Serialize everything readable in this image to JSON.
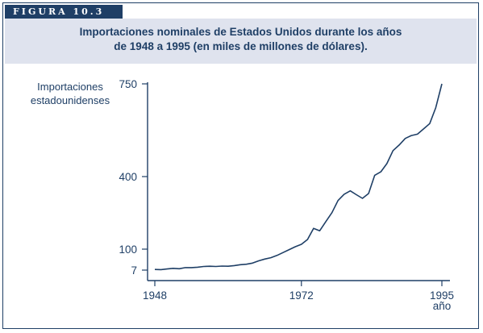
{
  "figure_label": "FIGURA 10.3",
  "chart_data": {
    "type": "line",
    "title_line1": "Importaciones nominales de Estados Unidos durante los años",
    "title_line2": "de 1948 a 1995 (en miles de millones de dólares).",
    "ylabel_line1": "Importaciones",
    "ylabel_line2": "estadounidenses",
    "xlabel": "año",
    "xticks": [
      1948,
      1972,
      1995
    ],
    "yticks": [
      7,
      100,
      400,
      750
    ],
    "xlim": [
      1948,
      1995
    ],
    "grid": false,
    "legend": "none",
    "series": [
      {
        "x": [
          1948,
          1949,
          1950,
          1951,
          1952,
          1953,
          1954,
          1955,
          1956,
          1957,
          1958,
          1959,
          1960,
          1961,
          1962,
          1963,
          1964,
          1965,
          1966,
          1967,
          1968,
          1969,
          1970,
          1971,
          1972,
          1973,
          1974,
          1975,
          1976,
          1977,
          1978,
          1979,
          1980,
          1981,
          1982,
          1983,
          1984,
          1985,
          1986,
          1987,
          1988,
          1989,
          1990,
          1991,
          1992,
          1993,
          1994,
          1995
        ],
        "y": [
          10,
          9,
          12,
          15,
          13,
          18,
          18,
          20,
          23,
          24,
          23,
          25,
          24,
          27,
          31,
          33,
          38,
          48,
          56,
          62,
          72,
          85,
          98,
          110,
          120,
          140,
          186,
          176,
          214,
          251,
          301,
          327,
          341,
          325,
          310,
          330,
          405,
          418,
          449,
          498,
          519,
          544,
          555,
          560,
          580,
          600,
          660,
          750
        ]
      }
    ]
  }
}
